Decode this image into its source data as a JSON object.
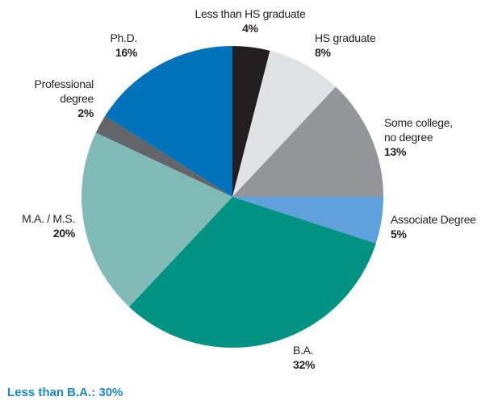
{
  "chart_data": {
    "type": "pie",
    "categories": [
      "Less than HS graduate",
      "HS graduate",
      "Some college, no degree",
      "Associate Degree",
      "B.A.",
      "M.A. / M.S.",
      "Professional degree",
      "Ph.D."
    ],
    "values": [
      4,
      8,
      13,
      5,
      32,
      20,
      2,
      16
    ],
    "value_labels": [
      "4%",
      "8%",
      "13%",
      "5%",
      "32%",
      "20%",
      "2%",
      "16%"
    ],
    "colors": [
      "#231f20",
      "#e1e2e4",
      "#939598",
      "#5fa1da",
      "#009384",
      "#80bbb8",
      "#646569",
      "#0072bc"
    ],
    "footnote": "Less than B.A.: 30%"
  }
}
